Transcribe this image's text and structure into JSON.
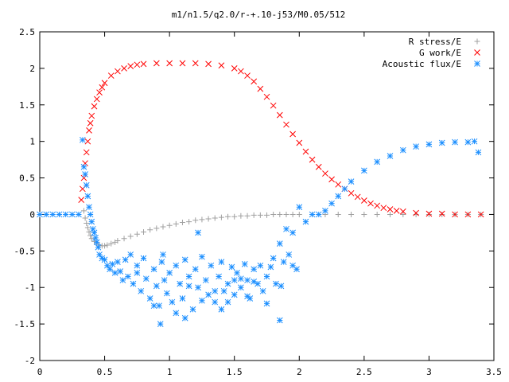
{
  "chart_data": {
    "type": "scatter",
    "title": "m1/n1.5/q2.0/r-+.10-j53/M0.05/512",
    "xlabel": "",
    "ylabel": "",
    "xlim": [
      0,
      3.5
    ],
    "ylim": [
      -2,
      2.5
    ],
    "xticks": [
      "0",
      "0.5",
      "1",
      "1.5",
      "2",
      "2.5",
      "3",
      "3.5"
    ],
    "yticks": [
      "-2",
      "-1.5",
      "-1",
      "-0.5",
      "0",
      "0.5",
      "1",
      "1.5",
      "2",
      "2.5"
    ],
    "grid": false,
    "legend_position": "top-right",
    "series": [
      {
        "name": "R stress/E",
        "marker": "plus",
        "color": "#a0a0a0",
        "x": [
          0.34,
          0.35,
          0.36,
          0.37,
          0.38,
          0.39,
          0.4,
          0.42,
          0.44,
          0.46,
          0.48,
          0.5,
          0.52,
          0.55,
          0.58,
          0.6,
          0.65,
          0.7,
          0.75,
          0.8,
          0.85,
          0.9,
          0.95,
          1.0,
          1.05,
          1.1,
          1.15,
          1.2,
          1.25,
          1.3,
          1.35,
          1.4,
          1.45,
          1.5,
          1.55,
          1.6,
          1.65,
          1.7,
          1.75,
          1.8,
          1.85,
          1.9,
          1.95,
          2.0,
          2.1,
          2.2,
          2.3,
          2.4,
          2.5,
          2.6,
          2.7,
          2.8,
          2.9,
          3.0,
          3.1,
          3.2,
          3.3,
          3.4
        ],
        "y": [
          0.05,
          -0.05,
          -0.12,
          -0.18,
          -0.24,
          -0.29,
          -0.33,
          -0.37,
          -0.4,
          -0.42,
          -0.43,
          -0.43,
          -0.42,
          -0.4,
          -0.38,
          -0.36,
          -0.33,
          -0.3,
          -0.27,
          -0.24,
          -0.21,
          -0.19,
          -0.17,
          -0.15,
          -0.13,
          -0.11,
          -0.1,
          -0.08,
          -0.07,
          -0.06,
          -0.05,
          -0.04,
          -0.03,
          -0.03,
          -0.02,
          -0.02,
          -0.01,
          -0.01,
          -0.01,
          0.0,
          0.0,
          0.0,
          0.0,
          0.0,
          0.0,
          0.0,
          0.0,
          0.0,
          0.0,
          0.0,
          0.0,
          0.0,
          0.0,
          0.0,
          0.0,
          0.0,
          0.0,
          0.0
        ]
      },
      {
        "name": "G work/E",
        "marker": "cross",
        "color": "#ff0000",
        "x": [
          0.32,
          0.33,
          0.34,
          0.35,
          0.36,
          0.37,
          0.38,
          0.39,
          0.4,
          0.42,
          0.44,
          0.46,
          0.48,
          0.5,
          0.55,
          0.6,
          0.65,
          0.7,
          0.75,
          0.8,
          0.9,
          1.0,
          1.1,
          1.2,
          1.3,
          1.4,
          1.5,
          1.55,
          1.6,
          1.65,
          1.7,
          1.75,
          1.8,
          1.85,
          1.9,
          1.95,
          2.0,
          2.05,
          2.1,
          2.15,
          2.2,
          2.25,
          2.3,
          2.35,
          2.4,
          2.45,
          2.5,
          2.55,
          2.6,
          2.65,
          2.7,
          2.75,
          2.8,
          2.9,
          3.0,
          3.1,
          3.2,
          3.3,
          3.4
        ],
        "y": [
          0.2,
          0.35,
          0.5,
          0.7,
          0.85,
          1.0,
          1.15,
          1.25,
          1.35,
          1.48,
          1.58,
          1.67,
          1.74,
          1.8,
          1.9,
          1.96,
          2.0,
          2.03,
          2.05,
          2.06,
          2.07,
          2.07,
          2.07,
          2.07,
          2.06,
          2.04,
          2.0,
          1.96,
          1.9,
          1.82,
          1.72,
          1.61,
          1.49,
          1.36,
          1.23,
          1.1,
          0.98,
          0.86,
          0.75,
          0.65,
          0.56,
          0.48,
          0.41,
          0.35,
          0.29,
          0.24,
          0.19,
          0.15,
          0.12,
          0.09,
          0.07,
          0.05,
          0.04,
          0.02,
          0.01,
          0.01,
          0.0,
          0.0,
          0.0
        ]
      },
      {
        "name": "Acoustic flux/E",
        "marker": "star",
        "color": "#1e90ff",
        "x": [
          0.0,
          0.05,
          0.1,
          0.15,
          0.2,
          0.25,
          0.3,
          0.33,
          0.34,
          0.35,
          0.36,
          0.37,
          0.38,
          0.39,
          0.4,
          0.41,
          0.42,
          0.43,
          0.44,
          0.45,
          0.46,
          0.48,
          0.5,
          0.52,
          0.54,
          0.56,
          0.58,
          0.6,
          0.62,
          0.64,
          0.66,
          0.68,
          0.7,
          0.72,
          0.75,
          0.78,
          0.8,
          0.82,
          0.85,
          0.88,
          0.9,
          0.92,
          0.94,
          0.96,
          0.98,
          1.0,
          1.02,
          1.05,
          1.08,
          1.1,
          1.12,
          1.15,
          1.18,
          1.2,
          1.22,
          1.25,
          1.28,
          1.3,
          1.32,
          1.35,
          1.38,
          1.4,
          1.42,
          1.45,
          1.48,
          1.5,
          1.52,
          1.55,
          1.58,
          1.6,
          1.62,
          1.65,
          1.68,
          1.7,
          1.72,
          1.75,
          1.78,
          1.8,
          1.82,
          1.85,
          1.88,
          1.9,
          1.92,
          1.95,
          1.98,
          2.0,
          2.05,
          2.1,
          2.15,
          2.2,
          2.25,
          2.3,
          2.35,
          2.4,
          2.5,
          2.6,
          2.7,
          2.8,
          2.9,
          3.0,
          3.1,
          3.2,
          3.3,
          3.35,
          3.38,
          0.75,
          0.88,
          0.95,
          1.05,
          1.15,
          1.25,
          1.35,
          1.45,
          1.55,
          1.65,
          1.75,
          1.85,
          1.95,
          0.93,
          1.12,
          1.4,
          1.6,
          1.86,
          1.22,
          1.5
        ],
        "y": [
          0.0,
          0.0,
          0.0,
          0.0,
          0.0,
          0.0,
          0.0,
          1.02,
          0.65,
          0.55,
          0.4,
          0.25,
          0.1,
          0.0,
          -0.1,
          -0.2,
          -0.25,
          -0.32,
          -0.38,
          -0.45,
          -0.55,
          -0.6,
          -0.62,
          -0.7,
          -0.75,
          -0.68,
          -0.8,
          -0.65,
          -0.78,
          -0.9,
          -0.62,
          -0.85,
          -0.55,
          -0.95,
          -0.7,
          -1.05,
          -0.6,
          -0.88,
          -1.15,
          -0.75,
          -0.98,
          -1.25,
          -0.65,
          -0.9,
          -1.08,
          -0.8,
          -1.2,
          -0.7,
          -0.95,
          -1.15,
          -0.62,
          -0.85,
          -1.3,
          -0.75,
          -1.0,
          -0.58,
          -0.9,
          -1.1,
          -0.7,
          -1.2,
          -0.85,
          -0.65,
          -1.05,
          -0.95,
          -0.72,
          -1.1,
          -0.8,
          -1.0,
          -0.68,
          -0.9,
          -1.15,
          -0.75,
          -0.95,
          -0.7,
          -1.05,
          -0.85,
          -0.72,
          -0.6,
          -0.95,
          -0.4,
          -0.65,
          -0.2,
          -0.55,
          -0.25,
          -0.75,
          0.1,
          -0.1,
          0.0,
          0.0,
          0.05,
          0.15,
          0.25,
          0.35,
          0.45,
          0.6,
          0.72,
          0.8,
          0.88,
          0.93,
          0.96,
          0.98,
          0.99,
          0.99,
          1.0,
          0.85,
          -0.8,
          -1.25,
          -0.55,
          -1.35,
          -0.98,
          -1.18,
          -1.05,
          -1.2,
          -0.88,
          -0.92,
          -1.22,
          -1.45,
          -0.7,
          -1.5,
          -1.42,
          -1.3,
          -1.12,
          -0.98,
          -0.25,
          -0.9
        ]
      }
    ]
  }
}
